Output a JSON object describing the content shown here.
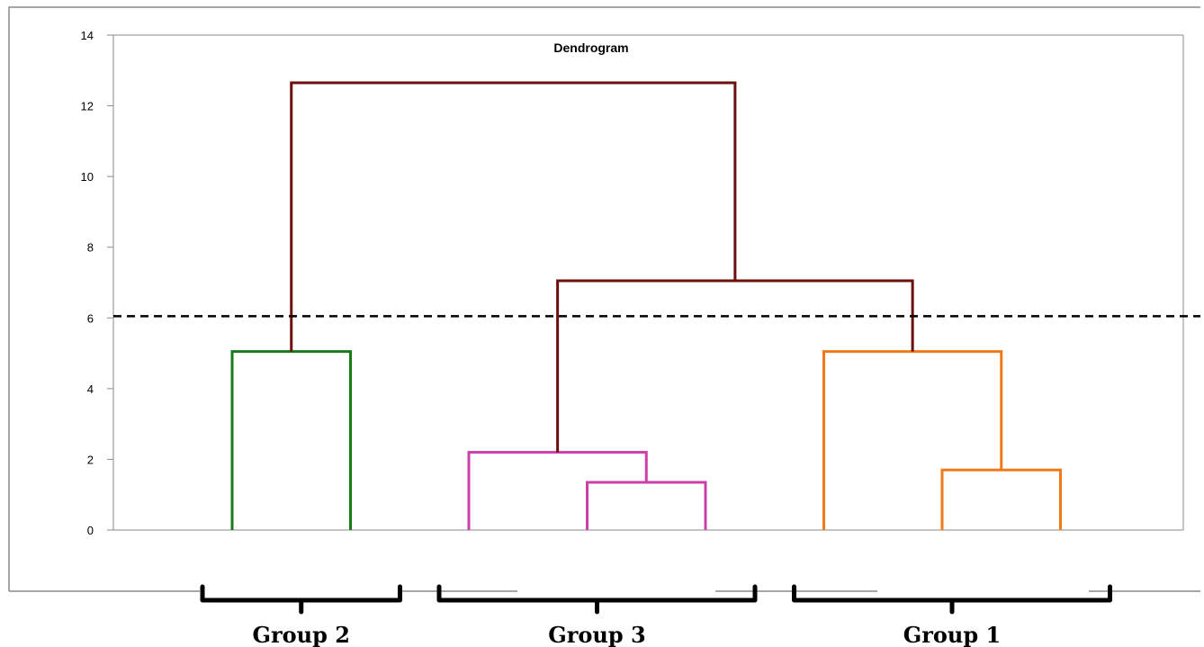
{
  "chart_data": {
    "type": "dendrogram",
    "title": "Dendrogram",
    "ylim": [
      0,
      14
    ],
    "yticks": [
      "0",
      "2",
      "4",
      "6",
      "8",
      "10",
      "12",
      "14"
    ],
    "cut_height": 6.05,
    "leaf_count": 8,
    "merges": [
      {
        "left": 0,
        "right": 1,
        "height": 5.05,
        "color": "#1a7a1a"
      },
      {
        "left": 3,
        "right": 4,
        "height": 1.35,
        "color": "#cc3fa8"
      },
      {
        "left": 2,
        "right": 3.5,
        "height": 2.2,
        "color": "#cc3fa8"
      },
      {
        "left": 6,
        "right": 7,
        "height": 1.7,
        "color": "#f07a1a"
      },
      {
        "left": 5,
        "right": 6.5,
        "height": 5.05,
        "color": "#f07a1a"
      },
      {
        "left": 2.75,
        "right": 5.75,
        "height": 7.05,
        "color": "#6b0f0f"
      },
      {
        "left": 0.5,
        "right": 4.25,
        "height": 12.65,
        "color": "#6b0f0f"
      }
    ],
    "groups": [
      {
        "label": "Group 2",
        "leaves": [
          0,
          1
        ]
      },
      {
        "label": "Group 3",
        "leaves": [
          2,
          3,
          4
        ]
      },
      {
        "label": "Group 1",
        "leaves": [
          5,
          6,
          7
        ]
      }
    ]
  },
  "colors": {
    "frame": "#8a8a8a",
    "cut_line": "#000000"
  }
}
